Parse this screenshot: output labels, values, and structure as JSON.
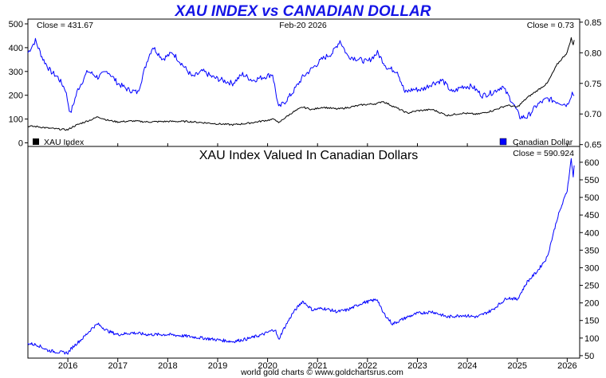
{
  "page": {
    "title": "XAU INDEX vs CANADIAN DOLLAR",
    "footer": "world gold charts © www.goldchartsrus.com"
  },
  "top_panel": {
    "date_label": "Feb-20  2026",
    "left_close": "Close = 431.67",
    "right_close": "Close = 0.73",
    "legend": [
      {
        "label": "XAU Index",
        "color": "#000000"
      },
      {
        "label": "Canadian Dollar",
        "color": "#0000ff"
      }
    ]
  },
  "bottom_panel": {
    "title": "XAU Index Valued In Canadian Dollars",
    "close": "Close = 590.924"
  },
  "colors": {
    "title": "#1414e6",
    "xau": "#000000",
    "cad": "#0000ff",
    "ratio": "#0000ff",
    "axis": "#000000",
    "background": "#ffffff"
  },
  "chart_data": [
    {
      "type": "line",
      "title": "",
      "x_ticks": [
        "2016",
        "2017",
        "2018",
        "2019",
        "2020",
        "2021",
        "2022",
        "2023",
        "2024",
        "2025",
        "2026"
      ],
      "y_left": {
        "ticks": [
          0,
          100,
          200,
          300,
          400,
          500
        ],
        "range": [
          -15,
          520
        ]
      },
      "y_right": {
        "ticks": [
          0.65,
          0.7,
          0.75,
          0.8,
          0.85
        ],
        "range": [
          0.647,
          0.855
        ]
      },
      "grid": false,
      "legend_position": "bottom",
      "series": [
        {
          "name": "XAU Index",
          "axis": "left",
          "x": [
            2015.2,
            2015.4,
            2015.6,
            2015.8,
            2016.0,
            2016.1,
            2016.3,
            2016.5,
            2016.6,
            2016.8,
            2017.0,
            2017.3,
            2017.6,
            2018.0,
            2018.4,
            2018.7,
            2019.0,
            2019.3,
            2019.6,
            2019.9,
            2020.15,
            2020.22,
            2020.3,
            2020.5,
            2020.7,
            2020.9,
            2021.1,
            2021.4,
            2021.6,
            2021.9,
            2022.2,
            2022.3,
            2022.5,
            2022.8,
            2023.0,
            2023.3,
            2023.6,
            2023.9,
            2024.2,
            2024.5,
            2024.8,
            2025.0,
            2025.2,
            2025.4,
            2025.6,
            2025.8,
            2026.0,
            2026.08,
            2026.12,
            2026.14
          ],
          "y": [
            70,
            68,
            62,
            58,
            55,
            68,
            85,
            100,
            110,
            95,
            88,
            92,
            88,
            90,
            90,
            85,
            80,
            76,
            82,
            92,
            100,
            82,
            98,
            128,
            150,
            140,
            150,
            142,
            148,
            160,
            165,
            175,
            155,
            125,
            135,
            140,
            115,
            125,
            120,
            135,
            158,
            150,
            190,
            220,
            250,
            330,
            380,
            440,
            410,
            432
          ]
        },
        {
          "name": "Canadian Dollar",
          "axis": "right",
          "x": [
            2015.2,
            2015.35,
            2015.5,
            2015.65,
            2015.8,
            2015.95,
            2016.05,
            2016.2,
            2016.4,
            2016.6,
            2016.8,
            2017.0,
            2017.2,
            2017.4,
            2017.6,
            2017.7,
            2017.9,
            2018.1,
            2018.3,
            2018.5,
            2018.7,
            2018.9,
            2019.1,
            2019.3,
            2019.5,
            2019.7,
            2019.9,
            2020.1,
            2020.22,
            2020.35,
            2020.5,
            2020.7,
            2020.9,
            2021.1,
            2021.3,
            2021.45,
            2021.6,
            2021.8,
            2022.0,
            2022.2,
            2022.4,
            2022.6,
            2022.75,
            2022.9,
            2023.1,
            2023.3,
            2023.5,
            2023.7,
            2023.9,
            2024.1,
            2024.3,
            2024.5,
            2024.7,
            2024.9,
            2025.05,
            2025.2,
            2025.4,
            2025.6,
            2025.8,
            2026.0,
            2026.1,
            2026.14
          ],
          "y": [
            0.8,
            0.82,
            0.79,
            0.77,
            0.76,
            0.74,
            0.7,
            0.74,
            0.77,
            0.76,
            0.77,
            0.75,
            0.74,
            0.735,
            0.79,
            0.81,
            0.79,
            0.8,
            0.78,
            0.76,
            0.77,
            0.76,
            0.755,
            0.75,
            0.765,
            0.755,
            0.76,
            0.765,
            0.71,
            0.72,
            0.735,
            0.76,
            0.775,
            0.79,
            0.8,
            0.82,
            0.795,
            0.79,
            0.785,
            0.8,
            0.775,
            0.77,
            0.735,
            0.74,
            0.74,
            0.75,
            0.755,
            0.735,
            0.745,
            0.745,
            0.73,
            0.735,
            0.745,
            0.72,
            0.695,
            0.695,
            0.715,
            0.725,
            0.72,
            0.715,
            0.735,
            0.73
          ]
        }
      ]
    },
    {
      "type": "line",
      "title": "XAU Index Valued In Canadian Dollars",
      "x_ticks": [
        "2016",
        "2017",
        "2018",
        "2019",
        "2020",
        "2021",
        "2022",
        "2023",
        "2024",
        "2025",
        "2026"
      ],
      "y_right": {
        "ticks": [
          50,
          100,
          150,
          200,
          250,
          300,
          350,
          400,
          450,
          500,
          550,
          600
        ],
        "range": [
          43,
          645
        ]
      },
      "grid": false,
      "series": [
        {
          "name": "XAU Index Valued In Canadian Dollars",
          "x": [
            2015.2,
            2015.4,
            2015.6,
            2015.8,
            2016.0,
            2016.1,
            2016.3,
            2016.5,
            2016.6,
            2016.8,
            2017.0,
            2017.3,
            2017.6,
            2018.0,
            2018.4,
            2018.7,
            2019.0,
            2019.3,
            2019.6,
            2019.9,
            2020.15,
            2020.22,
            2020.3,
            2020.5,
            2020.7,
            2020.9,
            2021.1,
            2021.4,
            2021.6,
            2021.9,
            2022.2,
            2022.3,
            2022.5,
            2022.8,
            2023.0,
            2023.3,
            2023.6,
            2023.9,
            2024.2,
            2024.5,
            2024.8,
            2025.0,
            2025.2,
            2025.4,
            2025.6,
            2025.8,
            2026.0,
            2026.08,
            2026.12,
            2026.14
          ],
          "y": [
            85,
            80,
            65,
            60,
            58,
            75,
            100,
            130,
            140,
            120,
            110,
            115,
            110,
            110,
            105,
            100,
            95,
            90,
            98,
            110,
            125,
            95,
            120,
            170,
            205,
            180,
            185,
            175,
            180,
            200,
            210,
            175,
            140,
            160,
            170,
            175,
            160,
            165,
            160,
            180,
            215,
            210,
            260,
            290,
            330,
            440,
            520,
            610,
            560,
            591
          ]
        }
      ]
    }
  ]
}
